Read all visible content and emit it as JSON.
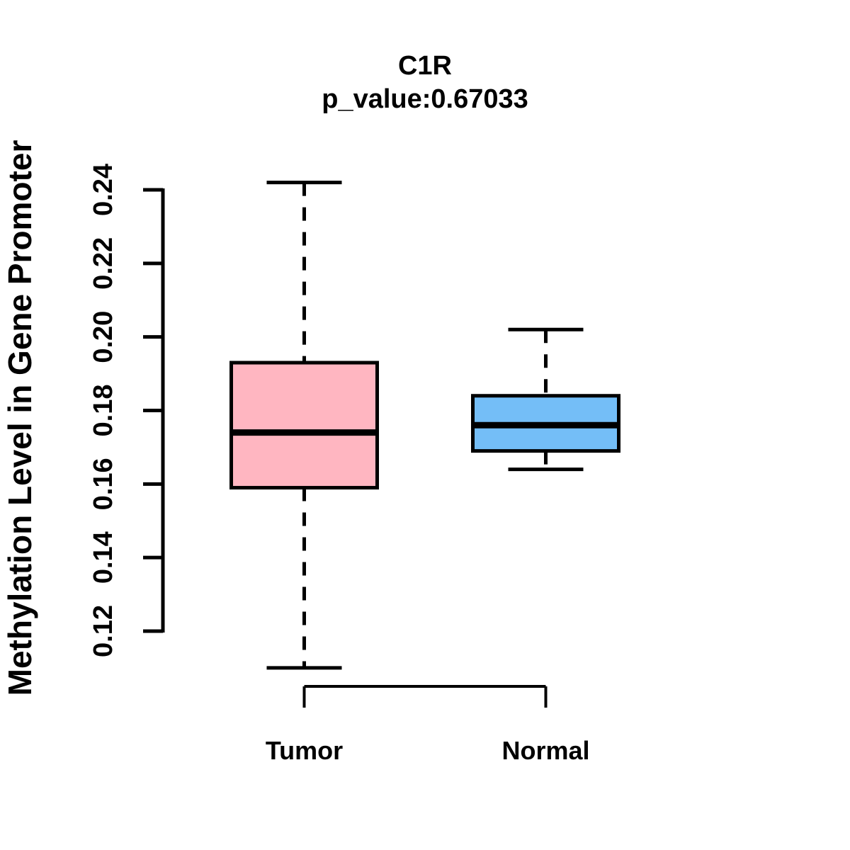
{
  "chart_data": {
    "type": "boxplot",
    "title": "C1R",
    "subtitle": "p_value:0.67033",
    "ylabel": "Methylation Level in Gene Promoter",
    "xlabel": "",
    "yaxis_range": [
      0.12,
      0.24
    ],
    "yticks": [
      0.12,
      0.14,
      0.16,
      0.18,
      0.2,
      0.22,
      0.24
    ],
    "ytick_labels": [
      "0.12",
      "0.14",
      "0.16",
      "0.18",
      "0.20",
      "0.22",
      "0.24"
    ],
    "grid": false,
    "legend": "none",
    "groups": [
      {
        "label": "Tumor",
        "box_color": "#FFB6C1",
        "whisker_low": 0.11,
        "q1": 0.159,
        "median": 0.174,
        "q3": 0.193,
        "whisker_high": 0.242
      },
      {
        "label": "Normal",
        "box_color": "#74BEF7",
        "whisker_low": 0.164,
        "q1": 0.169,
        "median": 0.176,
        "q3": 0.184,
        "whisker_high": 0.202
      }
    ],
    "line_color": "#000000",
    "background_color": "#FFFFFF"
  }
}
